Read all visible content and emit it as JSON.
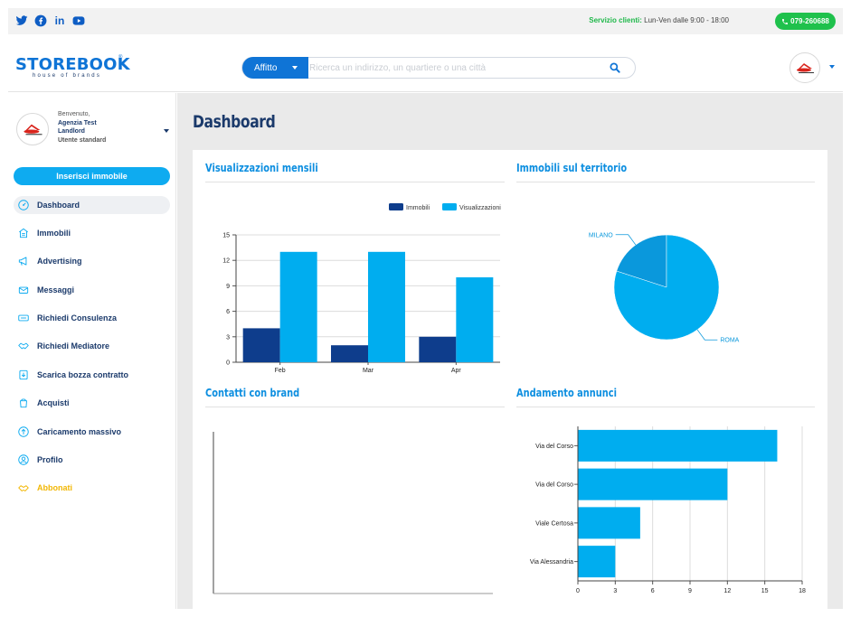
{
  "colors": {
    "brand_blue": "#0f74d6",
    "dark_navy": "#1b3a6b",
    "light_blue": "#00adef",
    "dark_bar": "#0e3d8c",
    "green": "#1fc14c",
    "gold": "#f2b705"
  },
  "topbar": {
    "social": [
      {
        "icon": "twitter-icon",
        "glyph": "🐦"
      },
      {
        "icon": "facebook-icon",
        "glyph": "f"
      },
      {
        "icon": "linkedin-icon",
        "glyph": "in"
      },
      {
        "icon": "youtube-icon",
        "glyph": "▶"
      }
    ],
    "service_label": "Servizio clienti:",
    "service_hours": " Lun-Ven dalle 9:00 - 18:00",
    "phone": "079-260688"
  },
  "header": {
    "logo": "STOREBOOK",
    "logo_sub": "house of brands",
    "logo_mark": "®",
    "search_type": "Affitto",
    "search_placeholder": "Ricerca un indirizzo, un quartiere o una città"
  },
  "user": {
    "welcome": "Benvenuto,",
    "name_line1": "Agenzia Test",
    "name_line2": "Landlord",
    "role": "Utente standard"
  },
  "sidebar": {
    "insert_button": "Inserisci immobile",
    "items": [
      {
        "label": "Dashboard",
        "icon": "dashboard-icon",
        "active": true
      },
      {
        "label": "Immobili",
        "icon": "building-icon"
      },
      {
        "label": "Advertising",
        "icon": "megaphone-icon"
      },
      {
        "label": "Messaggi",
        "icon": "message-icon"
      },
      {
        "label": "Richiedi Consulenza",
        "icon": "consult-icon"
      },
      {
        "label": "Richiedi Mediatore",
        "icon": "handshake-icon"
      },
      {
        "label": "Scarica bozza contratto",
        "icon": "download-contract-icon"
      },
      {
        "label": "Acquisti",
        "icon": "purchase-icon"
      },
      {
        "label": "Caricamento massivo",
        "icon": "upload-icon"
      },
      {
        "label": "Profilo",
        "icon": "profile-icon"
      },
      {
        "label": "Abbonati",
        "icon": "subscribe-icon",
        "gold": true
      }
    ]
  },
  "main": {
    "title": "Dashboard",
    "panels": {
      "monthly": "Visualizzazioni mensili",
      "territory": "Immobili sul territorio",
      "contacts": "Contatti con brand",
      "listings": "Andamento annunci"
    }
  },
  "chart_data": [
    {
      "type": "bar",
      "title": "Visualizzazioni mensili",
      "categories": [
        "Feb",
        "Mar",
        "Apr"
      ],
      "series": [
        {
          "name": "Immobili",
          "values": [
            4,
            2,
            3
          ],
          "color": "#0e3d8c"
        },
        {
          "name": "Visualizzazioni",
          "values": [
            13,
            13,
            10
          ],
          "color": "#00adef"
        }
      ],
      "ylim": [
        0,
        15
      ],
      "yticks": [
        0,
        3,
        6,
        9,
        12,
        15
      ],
      "legend": "top-right",
      "grid": true
    },
    {
      "type": "pie",
      "title": "Immobili sul territorio",
      "labels": [
        "MILANO",
        "ROMA"
      ],
      "values": [
        1,
        4
      ],
      "colors": [
        "#0a98dc",
        "#00adef"
      ]
    },
    {
      "type": "bar",
      "title": "Contatti con brand",
      "categories": [],
      "values": []
    },
    {
      "type": "bar",
      "orientation": "horizontal",
      "title": "Andamento annunci",
      "categories": [
        "Via del Corso",
        "Via del Corso",
        "Viale Certosa",
        "Via Alessandria"
      ],
      "values": [
        16,
        12,
        5,
        3
      ],
      "xlim": [
        0,
        18
      ],
      "xticks": [
        0,
        3,
        6,
        9,
        12,
        15,
        18
      ],
      "grid": true
    }
  ]
}
